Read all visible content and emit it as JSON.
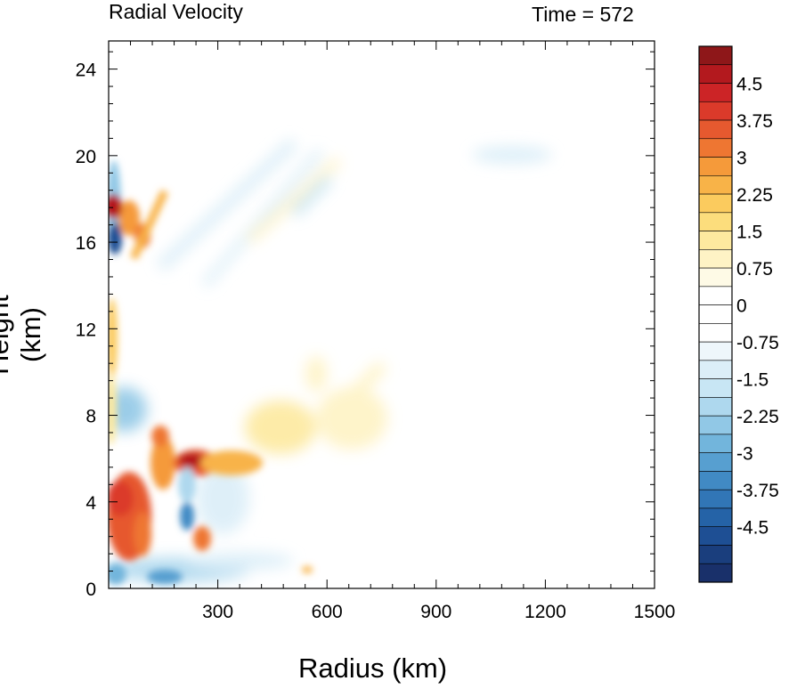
{
  "chart_data": {
    "type": "heatmap",
    "title_left": "Radial Velocity",
    "title_right": "Time = 572",
    "xlabel": "Radius (km)",
    "ylabel": "Height (km)",
    "xlim": [
      0,
      1500
    ],
    "ylim": [
      0,
      25.3
    ],
    "xticks": [
      300,
      600,
      900,
      1200,
      1500
    ],
    "yticks": [
      0,
      4,
      8,
      12,
      16,
      20,
      24
    ],
    "colorbar": {
      "labels": [
        "4.5",
        "3.75",
        "3",
        "2.25",
        "1.5",
        "0.75",
        "0",
        "-0.75",
        "-1.5",
        "-2.25",
        "-3",
        "-3.75",
        "-4.5"
      ],
      "levels": [
        4.5,
        3.75,
        3,
        2.25,
        1.5,
        0.75,
        0,
        -0.75,
        -1.5,
        -2.25,
        -3,
        -3.75,
        -4.5
      ],
      "colors": [
        "#8e1719",
        "#b3191e",
        "#cc2426",
        "#db3a2a",
        "#e6592f",
        "#ee7632",
        "#f59a3a",
        "#f8b348",
        "#fbcb5e",
        "#fcdd7c",
        "#fde99f",
        "#fef3c5",
        "#fefae6",
        "#ffffff",
        "#ffffff",
        "#ffffff",
        "#eef6fb",
        "#dbeef8",
        "#c8e6f4",
        "#aed8ee",
        "#91c8e6",
        "#72b5dc",
        "#579fd0",
        "#418ac4",
        "#3176b6",
        "#2563a7",
        "#1e4f94",
        "#1a3e7d",
        "#19306a"
      ]
    },
    "features": [
      {
        "x": 80,
        "y": 17.5,
        "value": 4.5
      },
      {
        "x": 210,
        "y": 6.0,
        "value": 4.5
      },
      {
        "x": 60,
        "y": 3.0,
        "value": 3.5
      },
      {
        "x": 160,
        "y": 6.5,
        "value": 3.0
      },
      {
        "x": 240,
        "y": 2.2,
        "value": 3.0
      },
      {
        "x": 130,
        "y": 17.8,
        "value": 2.5
      },
      {
        "x": 20,
        "y": 10.0,
        "value": 1.5
      },
      {
        "x": 520,
        "y": 6.5,
        "value": 0.75
      },
      {
        "x": 640,
        "y": 7.5,
        "value": 0.75
      },
      {
        "x": 550,
        "y": 9.5,
        "value": 0.75
      },
      {
        "x": 10,
        "y": 15.6,
        "value": -4.5
      },
      {
        "x": 20,
        "y": 8.5,
        "value": -2.25
      },
      {
        "x": 220,
        "y": 2.5,
        "value": -3.0
      },
      {
        "x": 150,
        "y": 0.4,
        "value": -3.0
      },
      {
        "x": 300,
        "y": 0.5,
        "value": -1.5
      },
      {
        "x": 350,
        "y": 18.0,
        "value": -0.75
      },
      {
        "x": 560,
        "y": 19.0,
        "value": -0.75
      },
      {
        "x": 1150,
        "y": 20.2,
        "value": -0.75
      }
    ],
    "grid": false,
    "legend": "right"
  }
}
